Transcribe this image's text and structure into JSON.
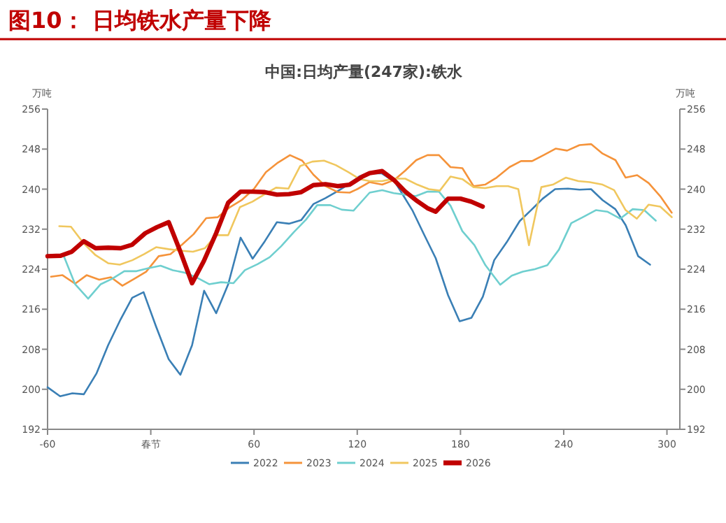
{
  "chart_data": {
    "type": "line",
    "title": "图10：  日均铁水产量下降",
    "subtitle": "中国:日均产量(247家):铁水",
    "ylabel": "万吨",
    "y2label": "万吨",
    "xlim": [
      -60,
      307.5
    ],
    "xticks": [
      -60,
      {
        "value": 0,
        "label": "春节"
      },
      60,
      120,
      180,
      240,
      300
    ],
    "ylim": [
      192,
      256
    ],
    "yticks": [
      192,
      200,
      208,
      216,
      224,
      232,
      240,
      248,
      256
    ],
    "y2lim": [
      192,
      256
    ],
    "y2ticks": [
      192,
      200,
      208,
      216,
      224,
      232,
      240,
      248,
      256
    ],
    "legend": "bottom",
    "marker": "none",
    "line_style": "solid",
    "grid": false,
    "series": [
      {
        "name": "2022",
        "color": "#3a7fb5",
        "x": [
          -60,
          -52.7,
          -45.6,
          -38.9,
          -31.5,
          -24.8,
          -17.5,
          -10.8,
          -4.2,
          3.1,
          10.4,
          17.2,
          24,
          31,
          38,
          45,
          52.2,
          59.2,
          66.3,
          73.3,
          80.3,
          87.4,
          94.5,
          101.5,
          108.6,
          115.6,
          121.5,
          127,
          134,
          142,
          152,
          158.6,
          165.6,
          172.8,
          179.5,
          186.4,
          193,
          199.6,
          206.9,
          214.4,
          221,
          227.8,
          235,
          242.5,
          249.2,
          255.9,
          262.6,
          270,
          276,
          283.3,
          290.2
        ],
        "values": [
          200.4,
          198.6,
          199.2,
          199,
          203.2,
          208.8,
          214,
          218.3,
          219.4,
          212.5,
          206,
          202.9,
          208.8,
          219.7,
          215.2,
          221,
          230.3,
          226.1,
          229.6,
          233.4,
          233.1,
          233.8,
          237,
          238.2,
          239.6,
          241.1,
          242.6,
          243.1,
          243.2,
          241.4,
          235.8,
          231.1,
          226.2,
          218.8,
          213.6,
          214.3,
          218.5,
          225.8,
          229.4,
          233.6,
          235.8,
          238.1,
          240,
          240.1,
          239.9,
          240,
          237.8,
          236,
          232.8,
          226.6,
          224.9
        ]
      },
      {
        "name": "2023",
        "color": "#f5933a",
        "x": [
          -58,
          -51.3,
          -44,
          -37.3,
          -30,
          -23.2,
          -16.5,
          -9.5,
          -2.7,
          4.6,
          11.4,
          18.1,
          24.9,
          32.2,
          39,
          46,
          52.8,
          60.1,
          66.9,
          73.9,
          80.9,
          88,
          94.5,
          101.5,
          108.8,
          115.6,
          120,
          127.2,
          134.5,
          141.4,
          147.9,
          154.3,
          160.8,
          167.5,
          174.2,
          181.1,
          187.6,
          194.3,
          201,
          208.5,
          215.2,
          221.6,
          228.3,
          235.3,
          242,
          249.2,
          255.9,
          262.6,
          270.1,
          276,
          282.7,
          289.4,
          296.1,
          302.8
        ],
        "values": [
          222.5,
          222.8,
          221.1,
          222.8,
          221.9,
          222.4,
          220.7,
          222.1,
          223.5,
          226.6,
          227,
          228.9,
          231,
          234.2,
          234.4,
          236.4,
          237.8,
          240.1,
          243.4,
          245.3,
          246.8,
          245.7,
          242.9,
          240.6,
          239.4,
          239.3,
          240,
          241.4,
          240.9,
          241.8,
          243.7,
          245.8,
          246.8,
          246.8,
          244.4,
          244.2,
          240.6,
          240.9,
          242.3,
          244.4,
          245.6,
          245.6,
          246.8,
          248.1,
          247.7,
          248.8,
          249,
          247.1,
          245.8,
          242.3,
          242.8,
          241.2,
          238.6,
          235.3
        ]
      },
      {
        "name": "2024",
        "color": "#6fcfcf",
        "x": [
          -50.5,
          -44,
          -36.4,
          -29.1,
          -22.4,
          -15.4,
          -8.3,
          -1.3,
          5.7,
          12.8,
          19.8,
          26.3,
          33.9,
          40.9,
          48,
          54.7,
          62,
          69.1,
          75.8,
          83.1,
          90.2,
          96.7,
          104.3,
          111,
          117.8,
          127.2,
          134.5,
          141.2,
          147.9,
          154,
          160.8,
          167.5,
          174.2,
          181.1,
          188.1,
          194.5,
          203.1,
          209.8,
          216.2,
          223.2,
          230.5,
          237.2,
          244.4,
          251.1,
          258.7,
          265.3,
          272.8,
          280.1,
          286.8,
          293.5
        ],
        "values": [
          226.6,
          221,
          218.1,
          221,
          222.1,
          223.6,
          223.6,
          224.2,
          224.7,
          223.8,
          223.3,
          222.4,
          221,
          221.4,
          221.2,
          223.8,
          225,
          226.4,
          228.6,
          231.4,
          233.9,
          236.8,
          236.8,
          235.9,
          235.7,
          239.3,
          239.8,
          239.2,
          238.9,
          238.6,
          239.5,
          239.5,
          236.7,
          231.6,
          228.8,
          224.8,
          220.9,
          222.7,
          223.5,
          224,
          224.8,
          227.9,
          233.2,
          234.4,
          235.8,
          235.5,
          234.1,
          236,
          235.8,
          233.7
        ]
      },
      {
        "name": "2025",
        "color": "#f0c75e",
        "x": [
          -53.2,
          -46.4,
          -39.1,
          -32.1,
          -24.8,
          -18,
          -10.7,
          -4,
          3.1,
          10.4,
          17.2,
          24.5,
          31.5,
          38,
          45,
          51.8,
          59.1,
          65.8,
          72.8,
          80,
          86.8,
          93.9,
          100.7,
          107.5,
          114.8,
          121.5,
          127.2,
          134.5,
          141.4,
          147.9,
          154.9,
          161.6,
          168,
          174.2,
          181.1,
          187.6,
          194.3,
          201,
          207.7,
          213.6,
          219.8,
          227,
          233.7,
          241.2,
          248.5,
          255.1,
          262.6,
          269.3,
          276,
          282.5,
          289.4,
          296.1,
          302.8
        ],
        "values": [
          232.6,
          232.5,
          229.2,
          226.8,
          225.2,
          224.9,
          225.8,
          227,
          228.4,
          228,
          227.7,
          227.5,
          228.2,
          230.8,
          230.8,
          236.4,
          237.5,
          238.9,
          240.3,
          240.1,
          244.6,
          245.5,
          245.7,
          244.8,
          243.4,
          242,
          241.6,
          241.6,
          242.1,
          242.1,
          240.9,
          240,
          239.7,
          242.5,
          242,
          240.4,
          240.2,
          240.6,
          240.6,
          240,
          228.8,
          240.4,
          240.9,
          242.3,
          241.6,
          241.4,
          240.9,
          239.8,
          235.8,
          234.1,
          236.9,
          236.5,
          234.4
        ]
      },
      {
        "name": "2026",
        "color": "#c00000",
        "x": [
          -60,
          -52.4,
          -45.9,
          -38.9,
          -32.1,
          -24.8,
          -17.5,
          -10.8,
          -3.2,
          3.6,
          10.4,
          17.2,
          24,
          30.8,
          38,
          45,
          52.2,
          59.2,
          66.3,
          73.3,
          80.3,
          87.4,
          94.5,
          101.5,
          108.6,
          115.6,
          122.9,
          127.2,
          134.5,
          141.4,
          147.9,
          154.9,
          160.8,
          165.6,
          172.8,
          180,
          186.2,
          192.9
        ],
        "values": [
          226.6,
          226.7,
          227.5,
          229.6,
          228.2,
          228.3,
          228.2,
          228.9,
          231.2,
          232.4,
          233.4,
          227.5,
          221.2,
          225.6,
          231.2,
          237.3,
          239.5,
          239.5,
          239.4,
          238.9,
          239,
          239.4,
          240.8,
          241,
          240.6,
          240.9,
          242.5,
          243.2,
          243.6,
          241.8,
          239.5,
          237.6,
          236.2,
          235.5,
          238.1,
          238.1,
          237.5,
          236.5
        ]
      }
    ]
  }
}
